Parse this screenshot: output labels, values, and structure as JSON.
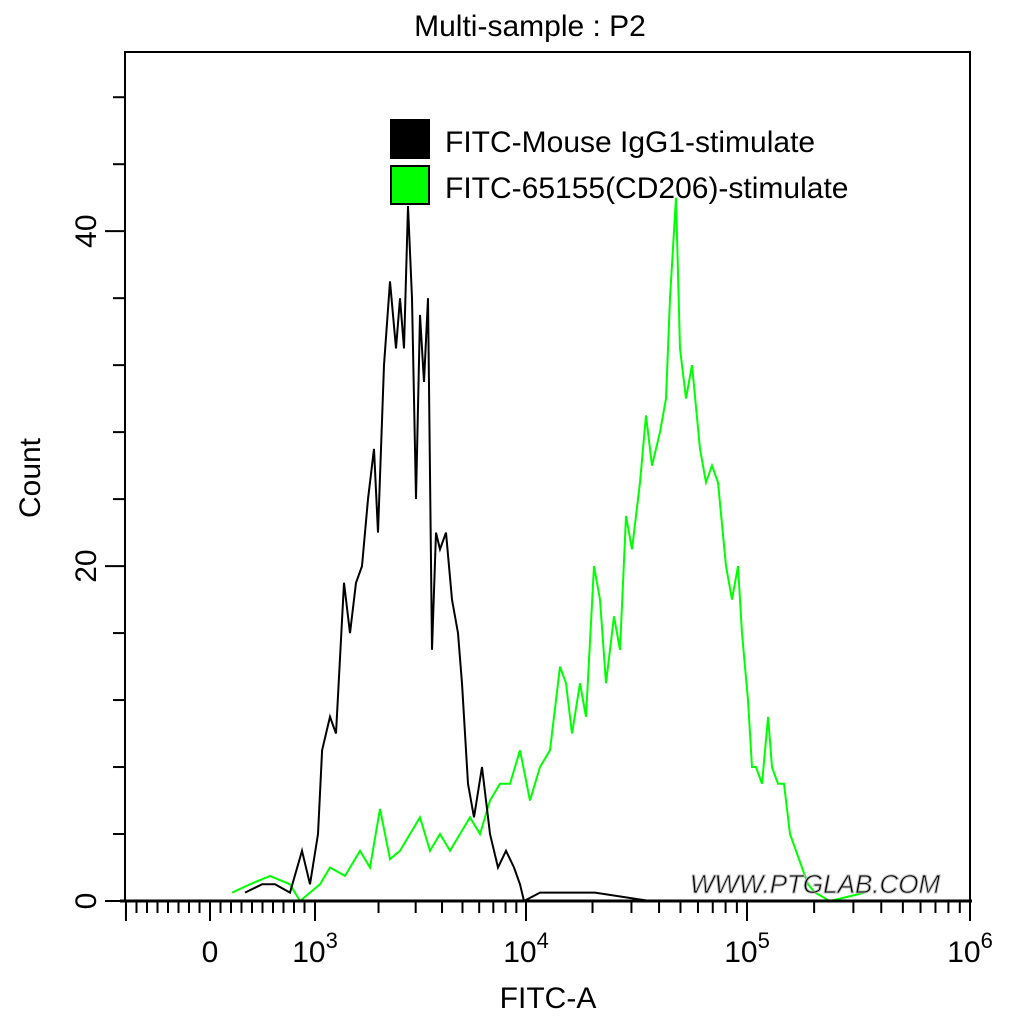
{
  "chart_data": {
    "type": "line",
    "title": "Multi-sample : P2",
    "xlabel": "FITC-A",
    "ylabel": "Count",
    "x_scale": "biexponential",
    "xlim": [
      -810,
      1000000
    ],
    "ylim": [
      0,
      50.7
    ],
    "x_ticks": [
      {
        "value": 0,
        "label": "0",
        "sup": ""
      },
      {
        "value": 1000,
        "label": "10",
        "sup": "3"
      },
      {
        "value": 10000,
        "label": "10",
        "sup": "4"
      },
      {
        "value": 100000,
        "label": "10",
        "sup": "5"
      },
      {
        "value": 1000000,
        "label": "10",
        "sup": "6"
      }
    ],
    "y_ticks": [
      {
        "value": 0,
        "label": "0"
      },
      {
        "value": 20,
        "label": "20"
      },
      {
        "value": 40,
        "label": "40"
      }
    ],
    "y_minor_step": 4,
    "grid": false,
    "legend_position": "top-right",
    "watermark": "WWW.PTGLAB.COM",
    "series": [
      {
        "name": "FITC-Mouse IgG1-stimulate",
        "color": "#000000",
        "x": [
          333,
          495,
          619,
          762,
          876,
          952,
          1033,
          1080,
          1178,
          1257,
          1372,
          1465,
          1564,
          1670,
          1783,
          1904,
          1989,
          2123,
          2267,
          2420,
          2528,
          2641,
          2759,
          2882,
          3011,
          3145,
          3286,
          3432,
          3585,
          3746,
          3913,
          4178,
          4461,
          4762,
          4973,
          5311,
          5670,
          6187,
          6752,
          7368,
          8039,
          8773,
          9367,
          9783,
          11570,
          20520,
          36400
        ],
        "y": [
          0.5,
          1,
          1,
          0.5,
          3,
          1,
          4,
          9,
          11,
          10,
          19,
          16,
          19,
          20,
          24,
          27,
          22,
          32,
          37,
          33,
          36,
          33,
          41.5,
          36,
          24,
          35,
          31,
          36,
          15,
          22,
          21,
          22,
          18,
          16,
          13,
          7,
          5,
          8,
          4,
          2,
          3,
          2,
          1,
          0,
          0.5,
          0.5,
          0
        ]
      },
      {
        "name": "FITC-65155(CD206)-stimulate",
        "color": "#00ff00",
        "x": [
          210,
          381,
          571,
          762,
          857,
          1056,
          1178,
          1388,
          1634,
          1823,
          2033,
          2267,
          2528,
          2819,
          3145,
          3508,
          3913,
          4364,
          4866,
          5428,
          6054,
          6752,
          7531,
          8400,
          9367,
          10430,
          11570,
          12840,
          14250,
          15170,
          16150,
          17550,
          18690,
          20310,
          21620,
          23010,
          25010,
          26630,
          28350,
          30170,
          32800,
          34920,
          37170,
          40410,
          43000,
          44840,
          47720,
          49750,
          52970,
          56380,
          61290,
          65240,
          69430,
          73920,
          80350,
          85520,
          91050,
          94930,
          101000,
          105300,
          109700,
          116800,
          124300,
          129500,
          137700,
          146500,
          155900,
          165900,
          176500,
          187700,
          201800,
          235600,
          338100
        ],
        "y": [
          0.5,
          1,
          1.5,
          1,
          0,
          1,
          2,
          1.5,
          3,
          2,
          5.5,
          2.5,
          3,
          4,
          5,
          3,
          4,
          3,
          4,
          5,
          4,
          6,
          7,
          7,
          9,
          6,
          8,
          9,
          14,
          13,
          10,
          13,
          11,
          20,
          18,
          13,
          17,
          15,
          23,
          21,
          25,
          29,
          26,
          28,
          30,
          36,
          42,
          33,
          30,
          32,
          27,
          25,
          26,
          25,
          20,
          18,
          20,
          16,
          12,
          8,
          8,
          7,
          11,
          8,
          7,
          7,
          4,
          3,
          2,
          1,
          0.5,
          0,
          0.5
        ]
      }
    ]
  }
}
